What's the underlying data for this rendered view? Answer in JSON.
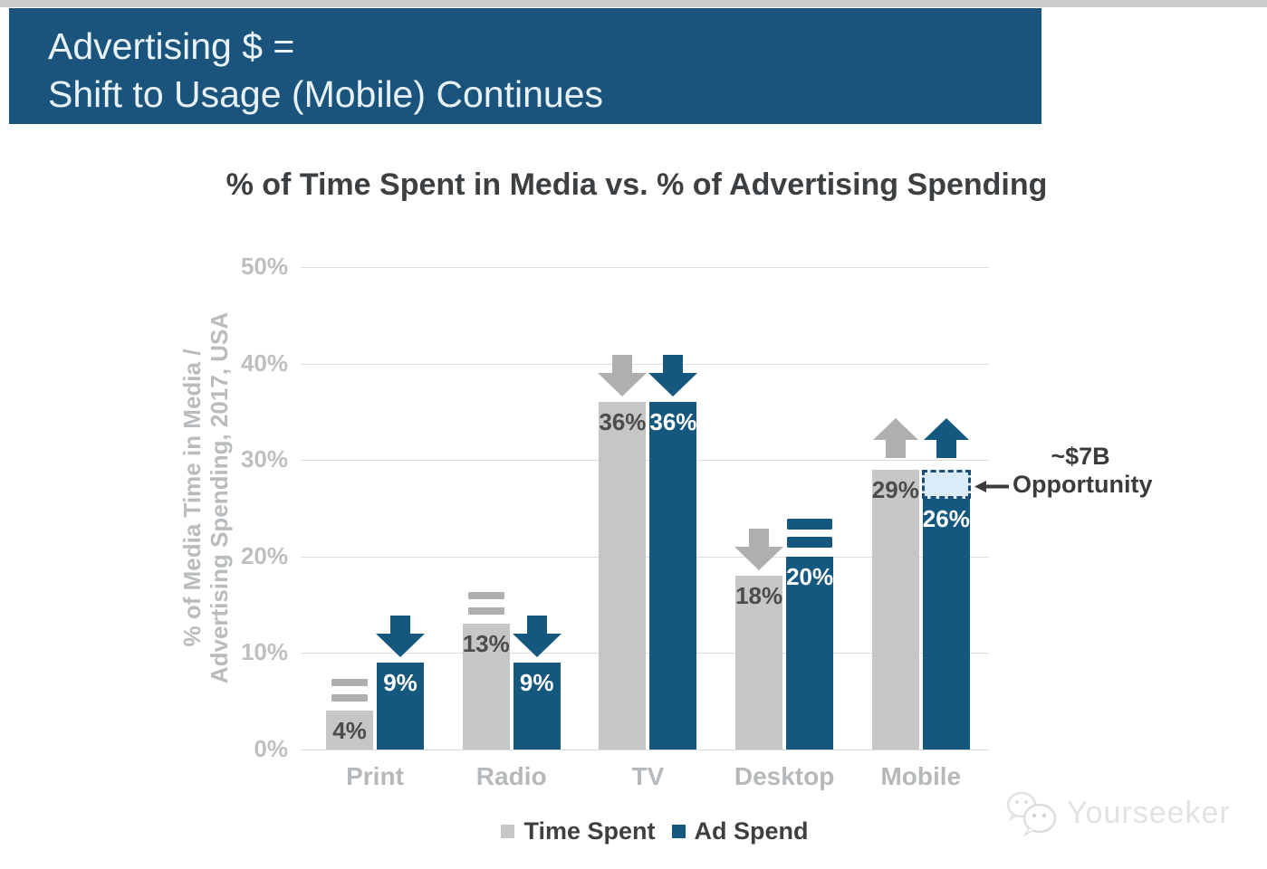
{
  "header": {
    "line1": "Advertising $ =",
    "line2": "Shift to Usage (Mobile) Continues",
    "bg_color": "#1a547d"
  },
  "chart_data": {
    "type": "bar",
    "title": "% of Time Spent in Media vs. % of Advertising Spending",
    "ylabel_line1": "% of Media Time in Media /",
    "ylabel_line2": "Advertising Spending, 2017, USA",
    "categories": [
      "Print",
      "Radio",
      "TV",
      "Desktop",
      "Mobile"
    ],
    "series": [
      {
        "name": "Time Spent",
        "color": "#c5c6c6",
        "marker_color": "#afafb0",
        "values": [
          4,
          13,
          36,
          18,
          29
        ],
        "trend": [
          "flat",
          "flat",
          "down",
          "down",
          "up"
        ]
      },
      {
        "name": "Ad Spend",
        "color": "#15587f",
        "marker_color": "#15587f",
        "values": [
          9,
          9,
          36,
          20,
          26
        ],
        "trend": [
          "down",
          "down",
          "down",
          "flat",
          "up"
        ]
      }
    ],
    "yticks": [
      "0%",
      "10%",
      "20%",
      "30%",
      "40%",
      "50%"
    ],
    "ylim": [
      0,
      50
    ],
    "grid": true,
    "legend_position": "bottom"
  },
  "annotation": {
    "line1": "~$7B",
    "line2": "Opportunity",
    "range": [
      26,
      29
    ],
    "box_fill": "#d9ecf7",
    "box_border": "#1d4e75"
  },
  "watermark": {
    "text": "Yourseeker"
  }
}
